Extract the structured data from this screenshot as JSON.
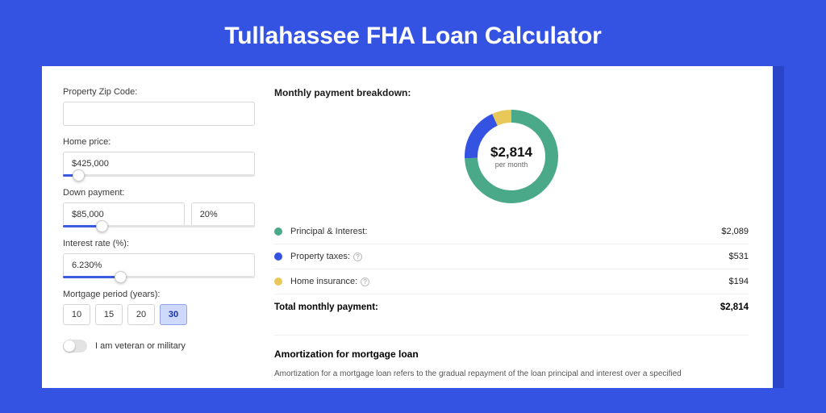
{
  "page_title": "Tullahassee FHA Loan Calculator",
  "colors": {
    "page_bg": "#3453e3",
    "shadow_bg": "#2b45c9",
    "card_bg": "#ffffff",
    "accent": "#3b5be0",
    "text_primary": "#1a1a1a",
    "text_secondary": "#555555",
    "border": "#d8d8d8"
  },
  "form": {
    "zip": {
      "label": "Property Zip Code:",
      "value": ""
    },
    "home_price": {
      "label": "Home price:",
      "value": "$425,000",
      "slider_pct": 8
    },
    "down_payment": {
      "label": "Down payment:",
      "amount": "$85,000",
      "percent": "20%",
      "slider_pct": 20
    },
    "interest": {
      "label": "Interest rate (%):",
      "value": "6.230%",
      "slider_pct": 30
    },
    "period": {
      "label": "Mortgage period (years):",
      "options": [
        "10",
        "15",
        "20",
        "30"
      ],
      "selected": "30"
    },
    "veteran": {
      "label": "I am veteran or military",
      "on": false
    }
  },
  "breakdown": {
    "title": "Monthly payment breakdown:",
    "donut": {
      "amount": "$2,814",
      "sub": "per month",
      "segments": [
        {
          "name": "principal_interest",
          "value": 2089,
          "color": "#4aa988"
        },
        {
          "name": "property_taxes",
          "value": 531,
          "color": "#3453e3"
        },
        {
          "name": "home_insurance",
          "value": 194,
          "color": "#e9c85a"
        }
      ],
      "stroke_width": 16,
      "radius": 50
    },
    "lines": [
      {
        "label": "Principal & Interest:",
        "value": "$2,089",
        "dot_color": "#4aa988",
        "info": false
      },
      {
        "label": "Property taxes:",
        "value": "$531",
        "dot_color": "#3453e3",
        "info": true
      },
      {
        "label": "Home insurance:",
        "value": "$194",
        "dot_color": "#e9c85a",
        "info": true
      }
    ],
    "total": {
      "label": "Total monthly payment:",
      "value": "$2,814"
    }
  },
  "amortization": {
    "title": "Amortization for mortgage loan",
    "text": "Amortization for a mortgage loan refers to the gradual repayment of the loan principal and interest over a specified"
  }
}
